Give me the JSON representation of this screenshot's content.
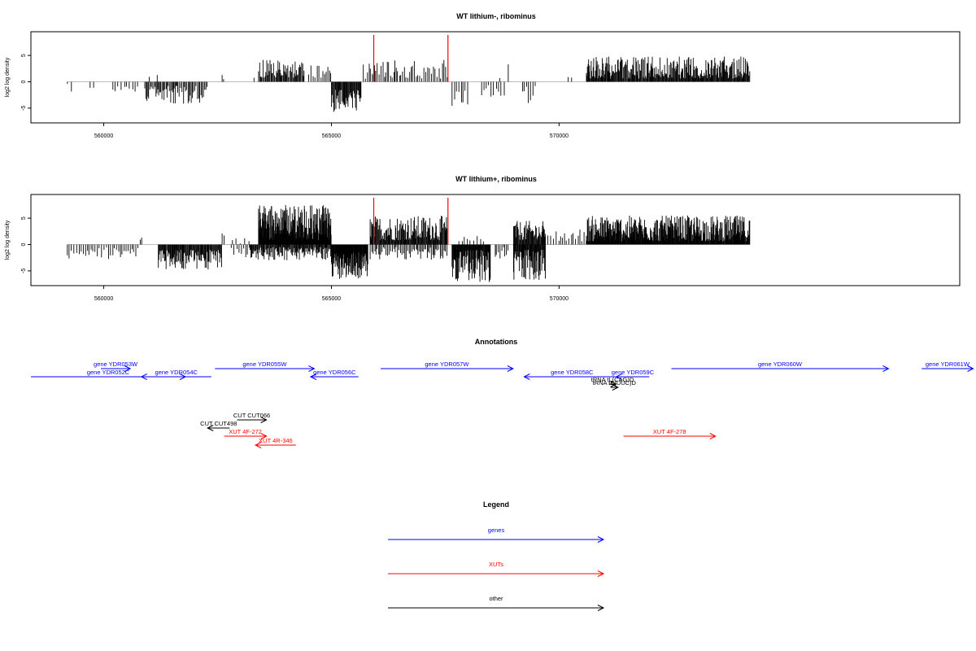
{
  "colors": {
    "gene": "#0000ff",
    "xut": "#ff0000",
    "other": "#000000",
    "marker": "#ff0000",
    "bars": "#000000",
    "baseline": "#bbbbbb"
  },
  "chart_data": [
    {
      "type": "bar",
      "title": "WT lithium-, ribominus",
      "ylabel": "log2 log density",
      "xlim": [
        558400,
        578800
      ],
      "ylim": [
        -7.8,
        9.5
      ],
      "xticks": [
        560000,
        565000,
        570000
      ],
      "xtick_labels": [
        "560000",
        "565000",
        "570000"
      ],
      "yticks": [
        -5,
        0,
        5
      ],
      "ytick_labels": [
        "-5",
        "0",
        "5"
      ],
      "markers_x": [
        565930,
        567560
      ],
      "segments": [
        {
          "from": 559200,
          "to": 559350,
          "min": -2.5,
          "max": 0,
          "step": 70
        },
        {
          "from": 559700,
          "to": 559800,
          "min": -2.8,
          "max": 0,
          "step": 80
        },
        {
          "from": 560200,
          "to": 560800,
          "min": -2.0,
          "max": -0.5,
          "step": 60
        },
        {
          "from": 560900,
          "to": 562300,
          "min": -4.3,
          "max": -0.8,
          "step": 25
        },
        {
          "from": 561000,
          "to": 561300,
          "min": 0.5,
          "max": 2.5,
          "step": 150
        },
        {
          "from": 562600,
          "to": 562650,
          "min": 0.5,
          "max": 2.8,
          "step": 50
        },
        {
          "from": 563300,
          "to": 563350,
          "min": 0.5,
          "max": 1.5,
          "step": 50
        },
        {
          "from": 563400,
          "to": 564400,
          "min": 0.8,
          "max": 4.2,
          "step": 18
        },
        {
          "from": 564500,
          "to": 565000,
          "min": 0.8,
          "max": 3.2,
          "step": 40
        },
        {
          "from": 565000,
          "to": 565650,
          "min": -5.8,
          "max": -1.5,
          "step": 14
        },
        {
          "from": 565700,
          "to": 567550,
          "min": 0.6,
          "max": 4.3,
          "step": 35
        },
        {
          "from": 567650,
          "to": 568050,
          "min": -4.6,
          "max": -0.8,
          "step": 45
        },
        {
          "from": 568300,
          "to": 568800,
          "min": -3.5,
          "max": -0.6,
          "step": 55
        },
        {
          "from": 568700,
          "to": 569000,
          "min": 0.7,
          "max": 3.5,
          "step": 150
        },
        {
          "from": 569200,
          "to": 569500,
          "min": -5.5,
          "max": -0.8,
          "step": 45
        },
        {
          "from": 570200,
          "to": 570300,
          "min": 0.5,
          "max": 1.0,
          "step": 60
        },
        {
          "from": 570600,
          "to": 574200,
          "min": 0.6,
          "max": 4.8,
          "step": 14
        }
      ]
    },
    {
      "type": "bar",
      "title": "WT lithium+, ribominus",
      "ylabel": "log2 log density",
      "xlim": [
        558400,
        578800
      ],
      "ylim": [
        -7.8,
        9.5
      ],
      "xticks": [
        560000,
        565000,
        570000
      ],
      "xtick_labels": [
        "560000",
        "565000",
        "570000"
      ],
      "yticks": [
        -5,
        0,
        5
      ],
      "ytick_labels": [
        "-5",
        "0",
        "5"
      ],
      "markers_x": [
        565930,
        567560
      ],
      "segments": [
        {
          "from": 559200,
          "to": 560800,
          "min": -2.8,
          "max": -0.5,
          "step": 45
        },
        {
          "from": 560800,
          "to": 560850,
          "min": 0.5,
          "max": 1.4,
          "step": 50
        },
        {
          "from": 561200,
          "to": 562600,
          "min": -4.8,
          "max": -1.0,
          "step": 14
        },
        {
          "from": 562600,
          "to": 562650,
          "min": 0.6,
          "max": 2.6,
          "step": 50
        },
        {
          "from": 562800,
          "to": 563300,
          "min": -2.5,
          "max": 2.0,
          "step": 35
        },
        {
          "from": 563400,
          "to": 565000,
          "min": 0.8,
          "max": 7.5,
          "step": 7
        },
        {
          "from": 563200,
          "to": 565000,
          "min": -3.0,
          "max": -0.5,
          "step": 15
        },
        {
          "from": 565000,
          "to": 565800,
          "min": -6.5,
          "max": -1.5,
          "step": 8
        },
        {
          "from": 565850,
          "to": 567550,
          "min": 0.8,
          "max": 5.5,
          "step": 14
        },
        {
          "from": 565850,
          "to": 567550,
          "min": -3.0,
          "max": -0.5,
          "step": 30
        },
        {
          "from": 567650,
          "to": 568500,
          "min": -7.2,
          "max": -1.0,
          "step": 10
        },
        {
          "from": 567800,
          "to": 568400,
          "min": 0.6,
          "max": 2.2,
          "step": 60
        },
        {
          "from": 568600,
          "to": 568900,
          "min": -3.0,
          "max": -0.5,
          "step": 35
        },
        {
          "from": 569000,
          "to": 569700,
          "min": 0.8,
          "max": 4.5,
          "step": 14
        },
        {
          "from": 569000,
          "to": 569700,
          "min": -7.0,
          "max": -1.0,
          "step": 12
        },
        {
          "from": 569700,
          "to": 570600,
          "min": 0.6,
          "max": 3.0,
          "step": 45
        },
        {
          "from": 570600,
          "to": 574200,
          "min": 0.6,
          "max": 5.5,
          "step": 10
        }
      ]
    }
  ],
  "annotations": {
    "title": "Annotations",
    "items": [
      {
        "label": "gene YDR052C",
        "category": "gene",
        "from": 558400,
        "to": 562600,
        "dir": "right",
        "row": "g2"
      },
      {
        "label": "gene YDR053W",
        "category": "gene",
        "from": 560300,
        "to": 561100,
        "dir": "right",
        "row": "g1"
      },
      {
        "label": "gene YDR054C",
        "category": "gene",
        "from": 561400,
        "to": 563300,
        "dir": "left",
        "row": "g2"
      },
      {
        "label": "gene YDR055W",
        "category": "gene",
        "from": 563400,
        "to": 566100,
        "dir": "right",
        "row": "g1"
      },
      {
        "label": "gene YDR056C",
        "category": "gene",
        "from": 566000,
        "to": 567300,
        "dir": "left",
        "row": "g2"
      },
      {
        "label": "gene YDR057W",
        "category": "gene",
        "from": 567900,
        "to": 571500,
        "dir": "right",
        "row": "g1"
      },
      {
        "label": "gene YDR058C",
        "category": "gene",
        "from": 571800,
        "to": 574400,
        "dir": "left",
        "row": "g2"
      },
      {
        "label": "gene YDR059C",
        "category": "gene",
        "from": 574300,
        "to": 575200,
        "dir": "left",
        "row": "g2"
      },
      {
        "label": "tRNA tL(CAG)D",
        "category": "other",
        "from": 574100,
        "to": 574300,
        "dir": "right",
        "row": "t1"
      },
      {
        "label": "tRNA tE(UUC)D",
        "category": "other",
        "from": 574150,
        "to": 574350,
        "dir": "right",
        "row": "t2"
      },
      {
        "label": "gene YDR060W",
        "category": "gene",
        "from": 575800,
        "to": 581700,
        "dir": "right",
        "row": "g1"
      },
      {
        "label": "gene YDR061W",
        "category": "gene",
        "from": 582600,
        "to": 584000,
        "dir": "right",
        "row": "g1"
      },
      {
        "label": "CUT CUT498",
        "category": "other",
        "from": 563200,
        "to": 563800,
        "dir": "left",
        "row": "c2"
      },
      {
        "label": "CUT CUT066",
        "category": "other",
        "from": 564000,
        "to": 564800,
        "dir": "right",
        "row": "c1"
      },
      {
        "label": "XUT 4F-272",
        "category": "xut",
        "from": 563650,
        "to": 564800,
        "dir": "right",
        "row": "x1"
      },
      {
        "label": "XUT 4R-346",
        "category": "xut",
        "from": 564500,
        "to": 565600,
        "dir": "left",
        "row": "x2"
      },
      {
        "label": "XUT 4F-278",
        "category": "xut",
        "from": 574500,
        "to": 577000,
        "dir": "right",
        "row": "x1"
      }
    ]
  },
  "legend": {
    "title": "Legend",
    "items": [
      {
        "label": "genes",
        "category": "gene"
      },
      {
        "label": "XUTs",
        "category": "xut"
      },
      {
        "label": "other",
        "category": "other"
      }
    ]
  }
}
